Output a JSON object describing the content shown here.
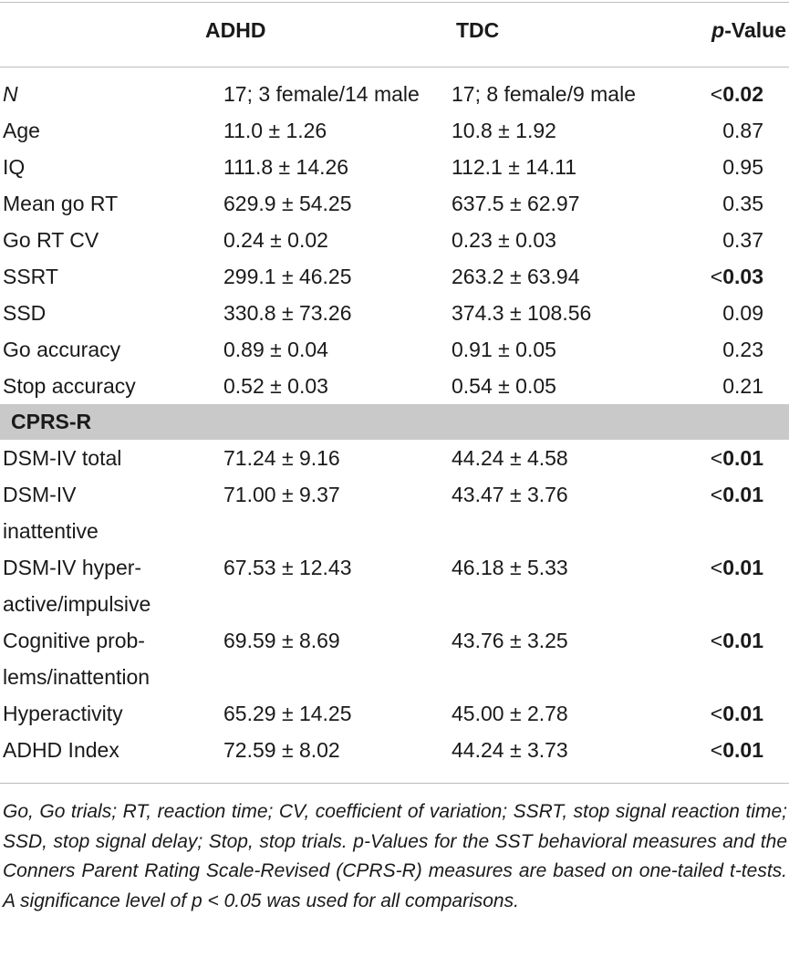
{
  "header": {
    "col_adhd": "ADHD",
    "col_tdc": "TDC",
    "col_p_italic": "p",
    "col_p_rest": "-Value"
  },
  "rows": [
    {
      "label": "N",
      "adhd": "17; 3 female/14 male",
      "tdc": "17; 8 female/9 male",
      "p_prefix": "<",
      "p": "0.02",
      "bold": true
    },
    {
      "label": "Age",
      "adhd": "11.0 ± 1.26",
      "tdc": "10.8 ± 1.92",
      "p_prefix": "",
      "p": "0.87",
      "bold": false
    },
    {
      "label": "IQ",
      "adhd": "111.8 ± 14.26",
      "tdc": "112.1 ± 14.11",
      "p_prefix": "",
      "p": "0.95",
      "bold": false
    },
    {
      "label": "Mean go RT",
      "adhd": "629.9 ± 54.25",
      "tdc": "637.5 ± 62.97",
      "p_prefix": "",
      "p": "0.35",
      "bold": false
    },
    {
      "label": "Go RT CV",
      "adhd": "0.24 ± 0.02",
      "tdc": "0.23 ± 0.03",
      "p_prefix": "",
      "p": "0.37",
      "bold": false
    },
    {
      "label": "SSRT",
      "adhd": "299.1 ± 46.25",
      "tdc": "263.2 ± 63.94",
      "p_prefix": "<",
      "p": "0.03",
      "bold": true
    },
    {
      "label": "SSD",
      "adhd": "330.8 ± 73.26",
      "tdc": "374.3 ± 108.56",
      "p_prefix": "",
      "p": "0.09",
      "bold": false
    },
    {
      "label": "Go accuracy",
      "adhd": "0.89 ± 0.04",
      "tdc": "0.91 ± 0.05",
      "p_prefix": "",
      "p": "0.23",
      "bold": false
    },
    {
      "label": "Stop accuracy",
      "adhd": "0.52 ± 0.03",
      "tdc": "0.54 ± 0.05",
      "p_prefix": "",
      "p": "0.21",
      "bold": false
    }
  ],
  "section_label": "CPRS-R",
  "cprs_rows": [
    {
      "label": "DSM-IV total",
      "adhd": "71.24 ± 9.16",
      "tdc": "44.24 ± 4.58",
      "p_prefix": "<",
      "p": "0.01"
    },
    {
      "label": "DSM-IV inattentive",
      "adhd": "71.00 ± 9.37",
      "tdc": "43.47 ± 3.76",
      "p_prefix": "<",
      "p": "0.01"
    },
    {
      "label": "DSM-IV hyper-active/impulsive",
      "adhd": "67.53 ± 12.43",
      "tdc": "46.18 ± 5.33",
      "p_prefix": "<",
      "p": "0.01"
    },
    {
      "label": "Cognitive prob-lems/inattention",
      "adhd": "69.59 ± 8.69",
      "tdc": "43.76 ± 3.25",
      "p_prefix": "<",
      "p": "0.01"
    },
    {
      "label": "Hyperactivity",
      "adhd": "65.29 ± 14.25",
      "tdc": "45.00 ± 2.78",
      "p_prefix": "<",
      "p": "0.01"
    },
    {
      "label": "ADHD Index",
      "adhd": "72.59 ± 8.02",
      "tdc": "44.24 ± 3.73",
      "p_prefix": "<",
      "p": "0.01"
    }
  ],
  "footnote": "Go, Go trials; RT, reaction time; CV, coefficient of variation; SSRT, stop signal reaction time; SSD, stop signal delay; Stop, stop trials. p-Values for the SST behavioral measures and the Conners Parent Rating Scale-Revised (CPRS-R) measures are based on one-tailed t-tests. A significance level of p < 0.05 was used for all comparisons."
}
